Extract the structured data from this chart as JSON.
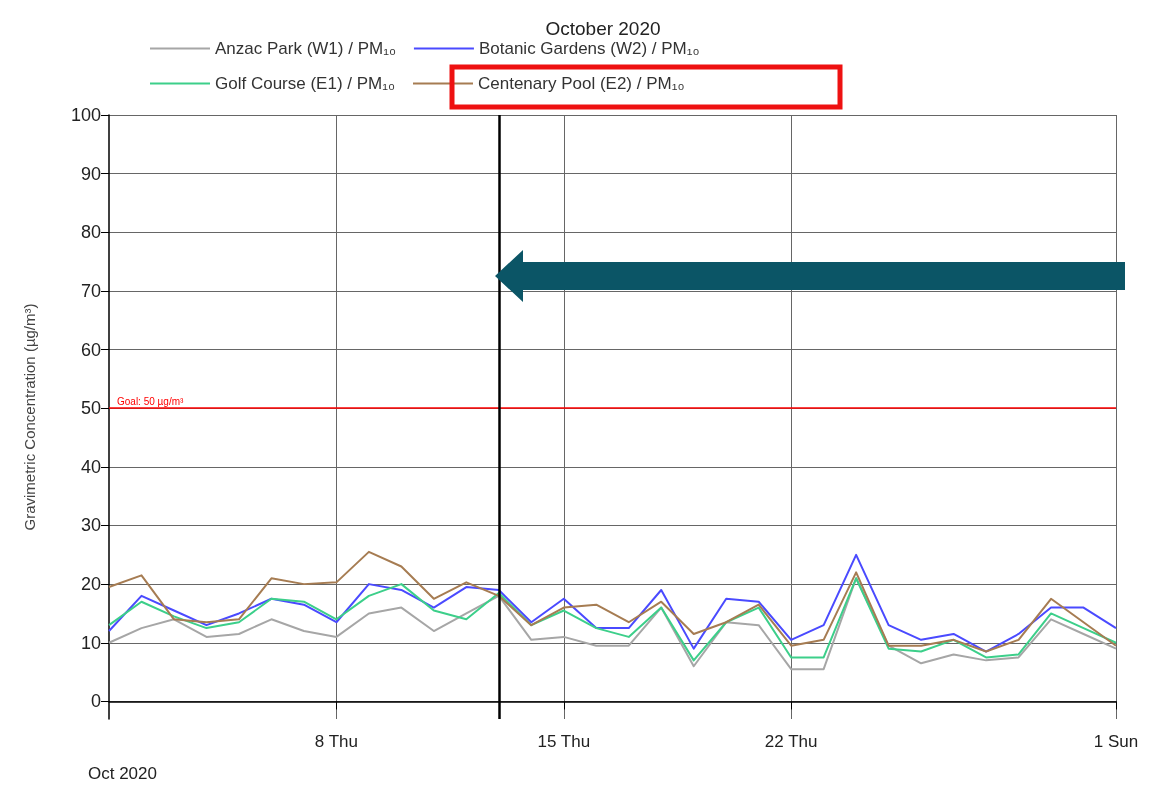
{
  "chart_data": {
    "type": "line",
    "title": "October 2020",
    "ylabel": "Gravimetric Concentration (µg/m³)",
    "x": [
      "2020-10-01",
      "2020-10-02",
      "2020-10-03",
      "2020-10-04",
      "2020-10-05",
      "2020-10-06",
      "2020-10-07",
      "2020-10-08",
      "2020-10-09",
      "2020-10-10",
      "2020-10-11",
      "2020-10-12",
      "2020-10-13",
      "2020-10-14",
      "2020-10-15",
      "2020-10-16",
      "2020-10-17",
      "2020-10-18",
      "2020-10-19",
      "2020-10-20",
      "2020-10-21",
      "2020-10-22",
      "2020-10-23",
      "2020-10-24",
      "2020-10-25",
      "2020-10-26",
      "2020-10-27",
      "2020-10-28",
      "2020-10-29",
      "2020-10-30",
      "2020-10-31",
      "2020-11-01"
    ],
    "series": [
      {
        "name": "Anzac Park (W1) / PM₁₀",
        "color": "#a6a6a6",
        "values": [
          10,
          12.5,
          14,
          11,
          11.5,
          14,
          12,
          11,
          15,
          16,
          12,
          15,
          18,
          10.5,
          11,
          9.5,
          9.5,
          16,
          6,
          13.5,
          13,
          5.5,
          5.5,
          21,
          9.5,
          6.5,
          8,
          7,
          7.5,
          14,
          11.5,
          9
        ]
      },
      {
        "name": "Botanic Gardens (W2) / PM₁₀",
        "color": "#4a4aff",
        "values": [
          12,
          18,
          15.5,
          13,
          15,
          17.5,
          16.5,
          13.5,
          20,
          19,
          16,
          19.5,
          19,
          13.5,
          17.5,
          12.5,
          12.5,
          19,
          9,
          17.5,
          17,
          10.5,
          13,
          25,
          13,
          10.5,
          11.5,
          8.5,
          11.5,
          16,
          16,
          12.5
        ]
      },
      {
        "name": "Golf Course (E1) / PM₁₀",
        "color": "#3ccf8a",
        "values": [
          13,
          17,
          14.5,
          12.5,
          13.5,
          17.5,
          17,
          14,
          18,
          20,
          15.5,
          14,
          18.5,
          13,
          15.5,
          12.5,
          11,
          16,
          7,
          13.5,
          16,
          7.5,
          7.5,
          21,
          9,
          8.5,
          10.5,
          7.5,
          8,
          15,
          12.5,
          10
        ]
      },
      {
        "name": "Centenary Pool (E2) / PM₁₀",
        "color": "#a67c52",
        "values": [
          19.5,
          21.5,
          14,
          13.5,
          14,
          21,
          20,
          20.3,
          25.5,
          23,
          17.5,
          20.3,
          18,
          13,
          16,
          16.5,
          13.5,
          17,
          11.5,
          13.5,
          16.5,
          9.5,
          10.5,
          22,
          9.5,
          9.5,
          10.5,
          8.5,
          10.5,
          17.5,
          13.5,
          9.5
        ]
      }
    ],
    "xlim": [
      "2020-10-01",
      "2020-11-01"
    ],
    "xticks": [
      {
        "value": "2020-10-08",
        "label": "8 Thu"
      },
      {
        "value": "2020-10-15",
        "label": "15 Thu"
      },
      {
        "value": "2020-10-22",
        "label": "22 Thu"
      },
      {
        "value": "2020-11-01",
        "label": "1 Sun"
      }
    ],
    "ylim": [
      -3,
      100
    ],
    "yticks": [
      0,
      10,
      20,
      30,
      40,
      50,
      60,
      70,
      80,
      90,
      100
    ],
    "grid": true,
    "legend": "top",
    "marker": "none",
    "line_style": "solid",
    "ref_lines": [
      {
        "axis": "y",
        "value": 50,
        "label": "Goal: 50 µg/m³",
        "color": "#ff0000"
      },
      {
        "axis": "x",
        "value": "2020-10-13",
        "color": "#000000"
      }
    ],
    "annotations": [
      "Oct 2020"
    ]
  }
}
